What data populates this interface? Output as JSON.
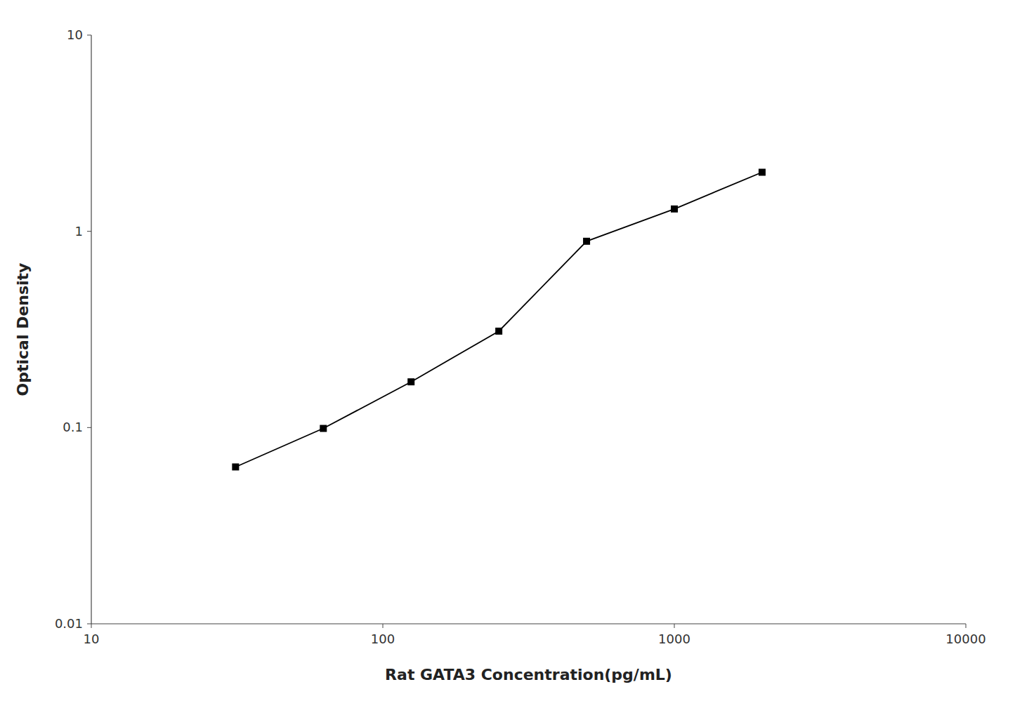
{
  "chart_data": {
    "type": "line",
    "x": [
      31.25,
      62.5,
      125,
      250,
      500,
      1000,
      2000
    ],
    "values": [
      0.063,
      0.099,
      0.171,
      0.31,
      0.89,
      1.3,
      2.0
    ],
    "xlabel": "Rat GATA3 Concentration(pg/mL)",
    "ylabel": "Optical Density",
    "xlim": [
      10,
      10000
    ],
    "ylim": [
      0.01,
      10
    ],
    "xticks": [
      10,
      100,
      1000,
      10000
    ],
    "yticks": [
      0.01,
      0.1,
      1,
      10
    ],
    "log": true,
    "grid": false,
    "color": "#000000",
    "marker": "square"
  }
}
